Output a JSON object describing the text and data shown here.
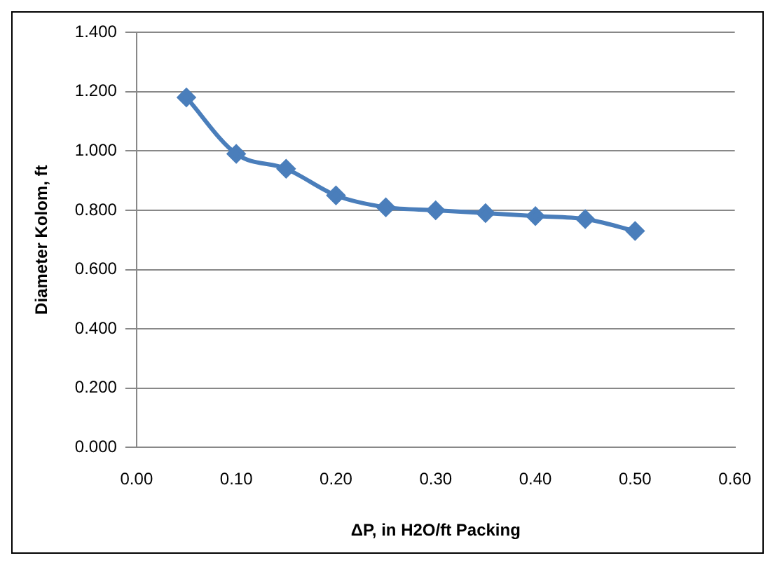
{
  "chart_data": {
    "type": "line",
    "xlabel": "ΔP, in H2O/ft Packing",
    "ylabel": "Diameter Kolom, ft",
    "x": [
      0.05,
      0.1,
      0.15,
      0.2,
      0.25,
      0.3,
      0.35,
      0.4,
      0.45,
      0.5
    ],
    "series": [
      {
        "color": "#4a7ebb",
        "values": [
          1.18,
          0.99,
          0.94,
          0.85,
          0.81,
          0.8,
          0.79,
          0.78,
          0.77,
          0.73
        ]
      }
    ],
    "xlim": [
      0,
      0.6
    ],
    "xticks": [
      {
        "value": 0,
        "label": "0.00"
      },
      {
        "value": 0.1,
        "label": "0.10"
      },
      {
        "value": 0.2,
        "label": "0.20"
      },
      {
        "value": 0.3,
        "label": "0.30"
      },
      {
        "value": 0.4,
        "label": "0.40"
      },
      {
        "value": 0.5,
        "label": "0.50"
      },
      {
        "value": 0.6,
        "label": "0.60"
      }
    ],
    "ylim": [
      0,
      1.4
    ],
    "yticks": [
      {
        "value": 0,
        "label": "0.000"
      },
      {
        "value": 0.2,
        "label": "0.200"
      },
      {
        "value": 0.4,
        "label": "0.400"
      },
      {
        "value": 0.6,
        "label": "0.600"
      },
      {
        "value": 0.8,
        "label": "0.800"
      },
      {
        "value": 1,
        "label": "1.000"
      },
      {
        "value": 1.2,
        "label": "1.200"
      },
      {
        "value": 1.4,
        "label": "1.400"
      }
    ],
    "grid": "y",
    "marker": "diamond",
    "line_style": "solid",
    "legend": false
  }
}
